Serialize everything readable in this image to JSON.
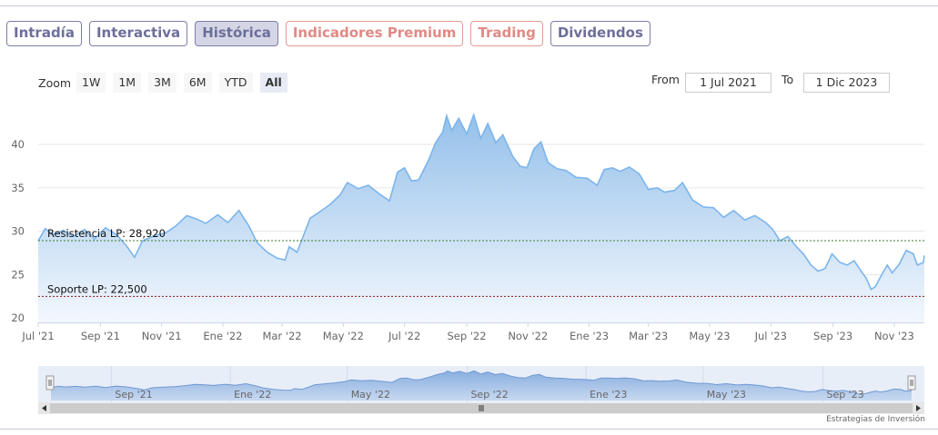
{
  "tabs": [
    {
      "label": "Intradía",
      "state": "normal"
    },
    {
      "label": "Interactiva",
      "state": "normal"
    },
    {
      "label": "Histórica",
      "state": "active"
    },
    {
      "label": "Indicadores Premium",
      "state": "premium"
    },
    {
      "label": "Trading",
      "state": "premium"
    },
    {
      "label": "Dividendos",
      "state": "normal"
    }
  ],
  "zoom": {
    "label": "Zoom",
    "buttons": [
      "1W",
      "1M",
      "3M",
      "6M",
      "YTD",
      "All"
    ],
    "selected": "All"
  },
  "range": {
    "from_label": "From",
    "from_value": "1 Jul 2021",
    "to_label": "To",
    "to_value": "1 Dic 2023"
  },
  "credit": "Estrategias de Inversión",
  "colors": {
    "line": "#7cb5ec",
    "fill_top": "#8fbde9",
    "fill_bottom": "#f2f7fd",
    "resistance": "#3a7d2c",
    "support": "#8b1a1a"
  },
  "chart_data": {
    "type": "area",
    "ylim": [
      19.5,
      44.5
    ],
    "y_ticks": [
      20,
      25,
      30,
      35,
      40
    ],
    "x_range": [
      "2021-07-01",
      "2023-12-01"
    ],
    "x_ticks": [
      {
        "date": "2021-07-01",
        "label": "Jul '21"
      },
      {
        "date": "2021-09-01",
        "label": "Sep '21"
      },
      {
        "date": "2021-11-01",
        "label": "Nov '21"
      },
      {
        "date": "2022-01-01",
        "label": "Ene '22"
      },
      {
        "date": "2022-03-01",
        "label": "Mar '22"
      },
      {
        "date": "2022-05-01",
        "label": "May '22"
      },
      {
        "date": "2022-07-01",
        "label": "Jul '22"
      },
      {
        "date": "2022-09-01",
        "label": "Sep '22"
      },
      {
        "date": "2022-11-01",
        "label": "Nov '22"
      },
      {
        "date": "2023-01-01",
        "label": "Ene '23"
      },
      {
        "date": "2023-03-01",
        "label": "Mar '23"
      },
      {
        "date": "2023-05-01",
        "label": "May '23"
      },
      {
        "date": "2023-07-01",
        "label": "Jul '23"
      },
      {
        "date": "2023-09-01",
        "label": "Sep '23"
      },
      {
        "date": "2023-11-01",
        "label": "Nov '23"
      }
    ],
    "series": [
      {
        "points": [
          [
            "2021-07-01",
            28.9
          ],
          [
            "2021-07-08",
            30.3
          ],
          [
            "2021-07-16",
            29.6
          ],
          [
            "2021-07-26",
            30.1
          ],
          [
            "2021-08-05",
            29.4
          ],
          [
            "2021-08-16",
            30.2
          ],
          [
            "2021-08-26",
            29.1
          ],
          [
            "2021-09-06",
            30.4
          ],
          [
            "2021-09-17",
            29.6
          ],
          [
            "2021-09-27",
            28.3
          ],
          [
            "2021-10-05",
            27.0
          ],
          [
            "2021-10-13",
            28.9
          ],
          [
            "2021-10-25",
            29.5
          ],
          [
            "2021-11-05",
            29.8
          ],
          [
            "2021-11-15",
            30.6
          ],
          [
            "2021-11-26",
            31.8
          ],
          [
            "2021-12-06",
            31.4
          ],
          [
            "2021-12-15",
            30.9
          ],
          [
            "2021-12-27",
            31.9
          ],
          [
            "2022-01-06",
            31.0
          ],
          [
            "2022-01-17",
            32.4
          ],
          [
            "2022-01-27",
            30.6
          ],
          [
            "2022-02-04",
            28.7
          ],
          [
            "2022-02-14",
            27.6
          ],
          [
            "2022-02-24",
            26.9
          ],
          [
            "2022-03-04",
            26.7
          ],
          [
            "2022-03-08",
            28.2
          ],
          [
            "2022-03-16",
            27.6
          ],
          [
            "2022-03-22",
            29.4
          ],
          [
            "2022-03-29",
            31.5
          ],
          [
            "2022-04-07",
            32.2
          ],
          [
            "2022-04-18",
            33.1
          ],
          [
            "2022-04-28",
            34.2
          ],
          [
            "2022-05-05",
            35.6
          ],
          [
            "2022-05-16",
            34.9
          ],
          [
            "2022-05-26",
            35.3
          ],
          [
            "2022-06-06",
            34.3
          ],
          [
            "2022-06-16",
            33.5
          ],
          [
            "2022-06-24",
            36.8
          ],
          [
            "2022-07-01",
            37.3
          ],
          [
            "2022-07-08",
            35.8
          ],
          [
            "2022-07-15",
            35.9
          ],
          [
            "2022-07-25",
            38.2
          ],
          [
            "2022-08-01",
            40.2
          ],
          [
            "2022-08-08",
            41.4
          ],
          [
            "2022-08-12",
            43.3
          ],
          [
            "2022-08-17",
            41.6
          ],
          [
            "2022-08-24",
            43.0
          ],
          [
            "2022-09-01",
            41.2
          ],
          [
            "2022-09-08",
            43.4
          ],
          [
            "2022-09-15",
            40.7
          ],
          [
            "2022-09-22",
            42.4
          ],
          [
            "2022-09-30",
            40.2
          ],
          [
            "2022-10-07",
            41.1
          ],
          [
            "2022-10-17",
            38.6
          ],
          [
            "2022-10-24",
            37.5
          ],
          [
            "2022-10-31",
            37.3
          ],
          [
            "2022-11-07",
            39.5
          ],
          [
            "2022-11-14",
            40.3
          ],
          [
            "2022-11-21",
            37.9
          ],
          [
            "2022-11-30",
            37.2
          ],
          [
            "2022-12-09",
            37.0
          ],
          [
            "2022-12-19",
            36.2
          ],
          [
            "2022-12-30",
            36.1
          ],
          [
            "2023-01-09",
            35.3
          ],
          [
            "2023-01-16",
            37.1
          ],
          [
            "2023-01-24",
            37.3
          ],
          [
            "2023-02-01",
            36.9
          ],
          [
            "2023-02-10",
            37.4
          ],
          [
            "2023-02-20",
            36.6
          ],
          [
            "2023-03-01",
            34.8
          ],
          [
            "2023-03-10",
            35.0
          ],
          [
            "2023-03-17",
            34.5
          ],
          [
            "2023-03-27",
            34.7
          ],
          [
            "2023-04-04",
            35.6
          ],
          [
            "2023-04-14",
            33.6
          ],
          [
            "2023-04-25",
            32.8
          ],
          [
            "2023-05-05",
            32.7
          ],
          [
            "2023-05-15",
            31.6
          ],
          [
            "2023-05-25",
            32.4
          ],
          [
            "2023-06-05",
            31.3
          ],
          [
            "2023-06-15",
            31.8
          ],
          [
            "2023-06-26",
            31.0
          ],
          [
            "2023-07-03",
            30.2
          ],
          [
            "2023-07-10",
            28.9
          ],
          [
            "2023-07-18",
            29.4
          ],
          [
            "2023-07-26",
            28.3
          ],
          [
            "2023-08-03",
            27.3
          ],
          [
            "2023-08-10",
            26.1
          ],
          [
            "2023-08-17",
            25.4
          ],
          [
            "2023-08-24",
            25.7
          ],
          [
            "2023-08-31",
            27.4
          ],
          [
            "2023-09-08",
            26.4
          ],
          [
            "2023-09-15",
            26.1
          ],
          [
            "2023-09-22",
            26.6
          ],
          [
            "2023-09-29",
            25.4
          ],
          [
            "2023-10-04",
            24.6
          ],
          [
            "2023-10-09",
            23.3
          ],
          [
            "2023-10-13",
            23.6
          ],
          [
            "2023-10-20",
            25.1
          ],
          [
            "2023-10-25",
            26.1
          ],
          [
            "2023-10-30",
            25.2
          ],
          [
            "2023-11-06",
            26.2
          ],
          [
            "2023-11-13",
            27.8
          ],
          [
            "2023-11-20",
            27.4
          ],
          [
            "2023-11-24",
            26.1
          ],
          [
            "2023-11-30",
            26.4
          ],
          [
            "2023-12-01",
            27.2
          ]
        ]
      }
    ],
    "plot_lines": [
      {
        "label": "Resistencia LP: 28,920",
        "value": 28.92
      },
      {
        "label": "Soporte LP: 22,500",
        "value": 22.5
      }
    ],
    "navigator": {
      "x_labels": [
        "Sep '21",
        "Ene '22",
        "May '22",
        "Sep '22",
        "Ene '23",
        "May '23",
        "Sep '23"
      ],
      "x_label_dates": [
        "2021-09-01",
        "2022-01-01",
        "2022-05-01",
        "2022-09-01",
        "2023-01-01",
        "2023-05-01",
        "2023-09-01"
      ]
    },
    "grid": true,
    "legend": "none"
  }
}
